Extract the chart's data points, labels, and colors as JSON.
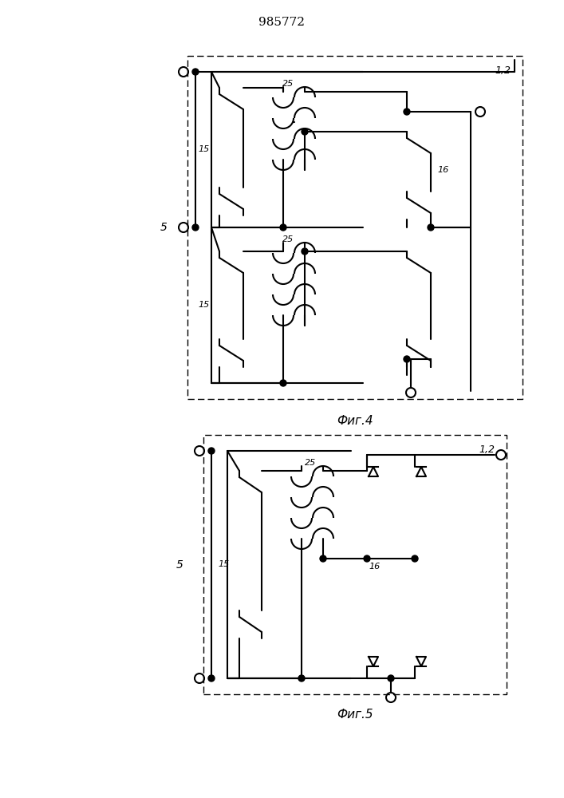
{
  "title": "985772",
  "fig4_label": "Фиг.4",
  "fig5_label": "Фиг.5",
  "line_color": "#000000",
  "bg_color": "#ffffff",
  "lw": 1.5,
  "label_15": "15",
  "label_16": "16",
  "label_25": "25",
  "label_12": "1,2",
  "label_5": "5"
}
